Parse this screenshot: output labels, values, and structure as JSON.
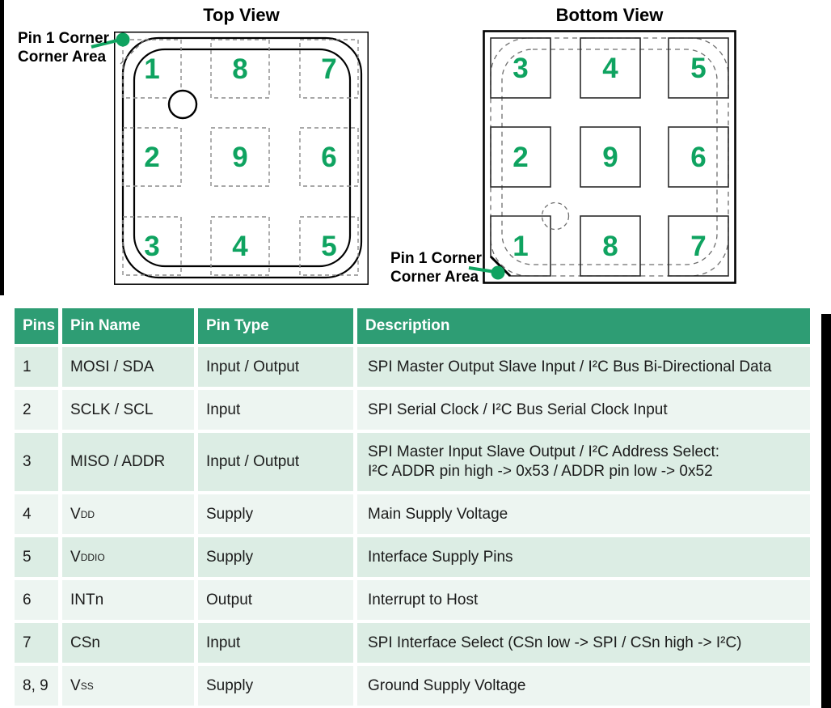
{
  "colors": {
    "accent_green": "#0fa360",
    "header_green": "#2e9d74",
    "row_green_dark": "#dcede4",
    "row_green_light": "#edf5f1"
  },
  "top_view": {
    "title": "Top View",
    "pin_grid": [
      [
        "1",
        "8",
        "7"
      ],
      [
        "2",
        "9",
        "6"
      ],
      [
        "3",
        "4",
        "5"
      ]
    ],
    "corner_label": {
      "line1": "Pin 1 Corner",
      "line2": "Corner Area"
    }
  },
  "bottom_view": {
    "title": "Bottom View",
    "pin_grid": [
      [
        "3",
        "4",
        "5"
      ],
      [
        "2",
        "9",
        "6"
      ],
      [
        "1",
        "8",
        "7"
      ]
    ],
    "corner_label": {
      "line1": "Pin 1 Corner",
      "line2": "Corner Area"
    }
  },
  "table": {
    "headers": [
      "Pins",
      "Pin Name",
      "Pin Type",
      "Description"
    ],
    "rows": [
      {
        "pins": "1",
        "name": "MOSI / SDA",
        "name_sub": "",
        "type": "Input / Output",
        "desc": [
          "SPI Master Output Slave Input / I²C Bus Bi-Directional Data"
        ]
      },
      {
        "pins": "2",
        "name": "SCLK / SCL",
        "name_sub": "",
        "type": "Input",
        "desc": [
          "SPI Serial Clock / I²C Bus Serial Clock Input"
        ]
      },
      {
        "pins": "3",
        "name": "MISO / ADDR",
        "name_sub": "",
        "type": "Input / Output",
        "desc": [
          "SPI Master Input Slave Output / I²C Address Select:",
          "I²C ADDR pin high -> 0x53 / ADDR pin low -> 0x52"
        ]
      },
      {
        "pins": "4",
        "name": "V",
        "name_sub": "DD",
        "type": "Supply",
        "desc": [
          "Main Supply Voltage"
        ]
      },
      {
        "pins": "5",
        "name": "V",
        "name_sub": "DDIO",
        "type": "Supply",
        "desc": [
          "Interface Supply Pins"
        ]
      },
      {
        "pins": "6",
        "name": "INTn",
        "name_sub": "",
        "type": "Output",
        "desc": [
          "Interrupt to Host"
        ]
      },
      {
        "pins": "7",
        "name": "CSn",
        "name_sub": "",
        "type": "Input",
        "desc": [
          "SPI Interface Select (CSn low -> SPI / CSn high -> I²C)"
        ]
      },
      {
        "pins": "8, 9",
        "name": "V",
        "name_sub": "SS",
        "type": "Supply",
        "desc": [
          "Ground Supply Voltage"
        ]
      }
    ]
  }
}
